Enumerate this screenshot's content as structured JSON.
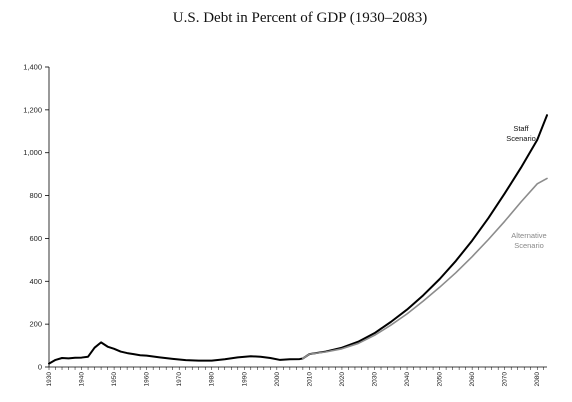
{
  "chart_data": {
    "type": "line",
    "title": "U.S. Debt in Percent of GDP (1930–2083)",
    "xlabel": "",
    "ylabel": "",
    "xlim": [
      1930,
      2083
    ],
    "ylim": [
      0,
      1400
    ],
    "y_ticks": [
      "0",
      "200",
      "400",
      "600",
      "800",
      "1,000",
      "1,200",
      "1,400"
    ],
    "x_ticks": [
      "1930",
      "1940",
      "1950",
      "1960",
      "1970",
      "1980",
      "1990",
      "2000",
      "2010",
      "2020",
      "2030",
      "2040",
      "2050",
      "2060",
      "2070",
      "2080"
    ],
    "grid": false,
    "series": [
      {
        "name": "Staff Scenario",
        "label_lines": [
          "Staff",
          "Scenario"
        ],
        "color": "#000000",
        "x": [
          1930,
          1932,
          1934,
          1936,
          1938,
          1940,
          1942,
          1944,
          1946,
          1948,
          1950,
          1952,
          1954,
          1956,
          1958,
          1960,
          1964,
          1968,
          1972,
          1976,
          1980,
          1984,
          1988,
          1992,
          1995,
          1998,
          2001,
          2004,
          2007,
          2008,
          2010,
          2015,
          2020,
          2025,
          2030,
          2035,
          2040,
          2045,
          2050,
          2055,
          2060,
          2065,
          2070,
          2075,
          2080,
          2083
        ],
        "y": [
          16,
          33,
          42,
          40,
          43,
          44,
          48,
          90,
          115,
          95,
          85,
          72,
          65,
          60,
          55,
          53,
          45,
          38,
          32,
          30,
          30,
          36,
          45,
          50,
          48,
          42,
          33,
          36,
          37,
          40,
          60,
          72,
          90,
          118,
          158,
          210,
          268,
          335,
          410,
          495,
          590,
          695,
          810,
          930,
          1060,
          1175
        ]
      },
      {
        "name": "Alternative Scenario",
        "label_lines": [
          "Alternative",
          "Scenario"
        ],
        "color": "#8c8c8c",
        "x": [
          2008,
          2010,
          2015,
          2020,
          2025,
          2030,
          2035,
          2040,
          2045,
          2050,
          2055,
          2060,
          2065,
          2070,
          2075,
          2080,
          2083
        ],
        "y": [
          40,
          60,
          70,
          85,
          110,
          148,
          195,
          248,
          308,
          372,
          440,
          515,
          595,
          680,
          770,
          855,
          880
        ]
      }
    ]
  }
}
